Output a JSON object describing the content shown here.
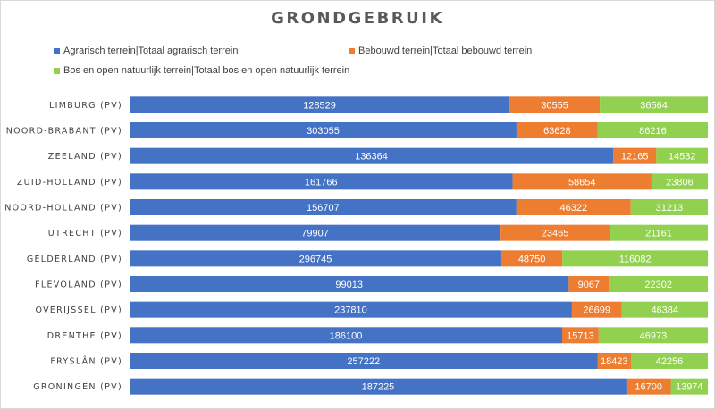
{
  "chart_data": {
    "type": "bar",
    "orientation": "horizontal",
    "stacked": "100%",
    "title": "GRONDGEBRUIK",
    "legend_position": "top",
    "categories": [
      "LIMBURG (PV)",
      "NOORD-BRABANT (PV)",
      "ZEELAND (PV)",
      "ZUID-HOLLAND (PV)",
      "NOORD-HOLLAND (PV)",
      "UTRECHT (PV)",
      "GELDERLAND (PV)",
      "FLEVOLAND (PV)",
      "OVERIJSSEL (PV)",
      "DRENTHE (PV)",
      "FRYSLÂN (PV)",
      "GRONINGEN (PV)"
    ],
    "series": [
      {
        "name": "Agrarisch terrein|Totaal agrarisch terrein",
        "color": "#4472c4",
        "values": [
          128529,
          303055,
          136364,
          161766,
          156707,
          79907,
          296745,
          99013,
          237810,
          186100,
          257222,
          187225
        ]
      },
      {
        "name": "Bebouwd terrein|Totaal bebouwd terrein",
        "color": "#ed7d31",
        "values": [
          30555,
          63628,
          12165,
          58654,
          46322,
          23465,
          48750,
          9067,
          26699,
          15713,
          18423,
          16700
        ]
      },
      {
        "name": "Bos en open natuurlijk terrein|Totaal  bos en open natuurlijk terrein",
        "color": "#92d050",
        "values": [
          36564,
          86216,
          14532,
          23806,
          31213,
          21161,
          116082,
          22302,
          46384,
          46973,
          42256,
          13974
        ]
      }
    ]
  }
}
